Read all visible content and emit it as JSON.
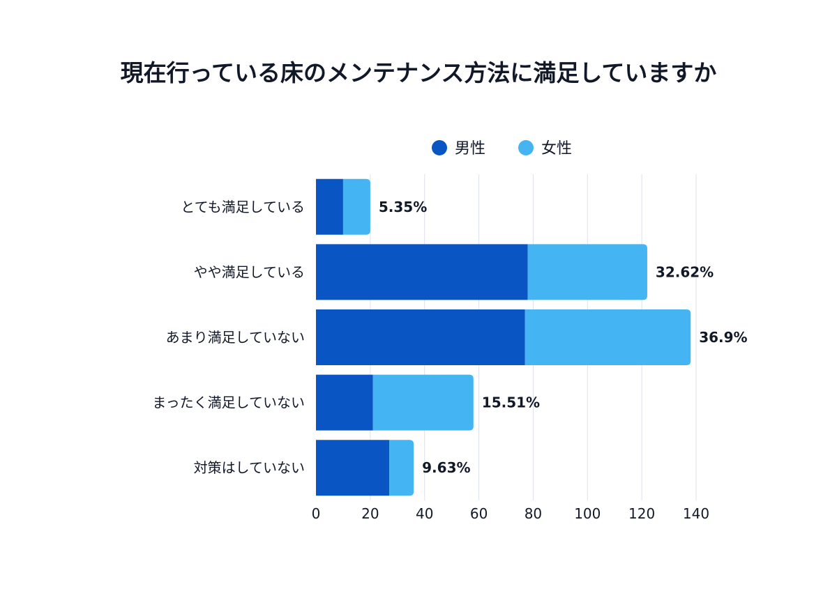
{
  "chart_data": {
    "type": "bar",
    "orientation": "horizontal",
    "stacked": true,
    "title": "現在行っている床のメンテナンス方法に満足していますか",
    "categories": [
      "とても満足している",
      "やや満足している",
      "あまり満足していない",
      "まったく満足していない",
      "対策はしていない"
    ],
    "series": [
      {
        "name": "男性",
        "color": "#0a55c4",
        "values": [
          10,
          78,
          77,
          21,
          27
        ]
      },
      {
        "name": "女性",
        "color": "#45b4f2",
        "values": [
          10,
          44,
          61,
          37,
          9
        ]
      }
    ],
    "data_labels": [
      "5.35%",
      "32.62%",
      "36.9%",
      "15.51%",
      "9.63%"
    ],
    "xlim": [
      0,
      140
    ],
    "xticks": [
      "0",
      "20",
      "40",
      "60",
      "80",
      "100",
      "120",
      "140"
    ],
    "grid": true,
    "legend_position": "top"
  }
}
